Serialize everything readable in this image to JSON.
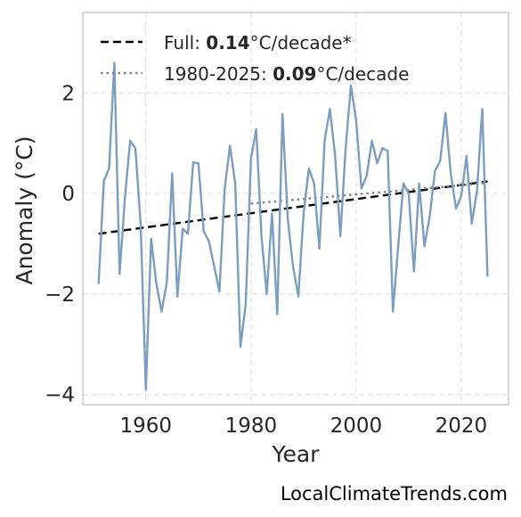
{
  "chart_data": {
    "type": "line",
    "title": "",
    "xlabel": "Year",
    "ylabel": "Anomaly (°C)",
    "xlim": [
      1948,
      2029
    ],
    "ylim": [
      -4.2,
      3.6
    ],
    "xticks": [
      1960,
      1980,
      2000,
      2020
    ],
    "xtick_labels": [
      "1960",
      "1980",
      "2000",
      "2020"
    ],
    "yticks": [
      -4,
      -2,
      0,
      2
    ],
    "ytick_labels": [
      "−4",
      "−2",
      "0",
      "2"
    ],
    "grid": true,
    "legend_position": "top-left",
    "series": [
      {
        "color": "#7b9dbf",
        "x": [
          1951,
          1952,
          1953,
          1954,
          1955,
          1956,
          1957,
          1958,
          1959,
          1960,
          1961,
          1962,
          1963,
          1964,
          1965,
          1966,
          1967,
          1968,
          1969,
          1970,
          1971,
          1972,
          1973,
          1974,
          1975,
          1976,
          1977,
          1978,
          1979,
          1980,
          1981,
          1982,
          1983,
          1984,
          1985,
          1986,
          1987,
          1988,
          1989,
          1990,
          1991,
          1992,
          1993,
          1994,
          1995,
          1996,
          1997,
          1998,
          1999,
          2000,
          2001,
          2002,
          2003,
          2004,
          2005,
          2006,
          2007,
          2008,
          2009,
          2010,
          2011,
          2012,
          2013,
          2014,
          2015,
          2016,
          2017,
          2018,
          2019,
          2020,
          2021,
          2022,
          2023,
          2024,
          2025
        ],
        "values": [
          -1.8,
          0.25,
          0.5,
          2.6,
          -1.6,
          -0.1,
          1.05,
          0.9,
          -0.6,
          -3.9,
          -0.9,
          -1.8,
          -2.35,
          -1.75,
          0.4,
          -2.05,
          -0.7,
          -0.8,
          0.62,
          0.6,
          -0.75,
          -0.95,
          -1.45,
          -1.95,
          0.1,
          0.95,
          0.2,
          -3.05,
          -2.2,
          0.7,
          1.28,
          -0.85,
          -2.0,
          -0.4,
          -2.4,
          1.58,
          -0.5,
          -1.45,
          -2.05,
          -0.4,
          0.5,
          0.2,
          -1.1,
          1.05,
          1.68,
          0.75,
          -0.85,
          0.9,
          2.15,
          1.45,
          0.1,
          0.35,
          1.05,
          0.6,
          0.9,
          0.85,
          -2.35,
          -1.05,
          0.2,
          0.0,
          -1.55,
          0.2,
          -1.05,
          -0.45,
          0.45,
          0.65,
          1.6,
          0.4,
          -0.3,
          -0.05,
          0.75,
          -0.6,
          0.05,
          1.68,
          -1.65
        ]
      }
    ],
    "trends": [
      {
        "label_prefix": "Full: ",
        "label_value": "0.14",
        "label_suffix": "°C/decade*",
        "x_start": 1951,
        "x_end": 2025,
        "y_start": -0.8,
        "y_end": 0.24,
        "color": "#000000",
        "style": "dashed"
      },
      {
        "label_prefix": "1980-2025: ",
        "label_value": "0.09",
        "label_suffix": "°C/decade",
        "x_start": 1980,
        "x_end": 2025,
        "y_start": -0.2,
        "y_end": 0.21,
        "color": "#808080",
        "style": "dotted"
      }
    ]
  },
  "watermark": "LocalClimateTrends.com"
}
